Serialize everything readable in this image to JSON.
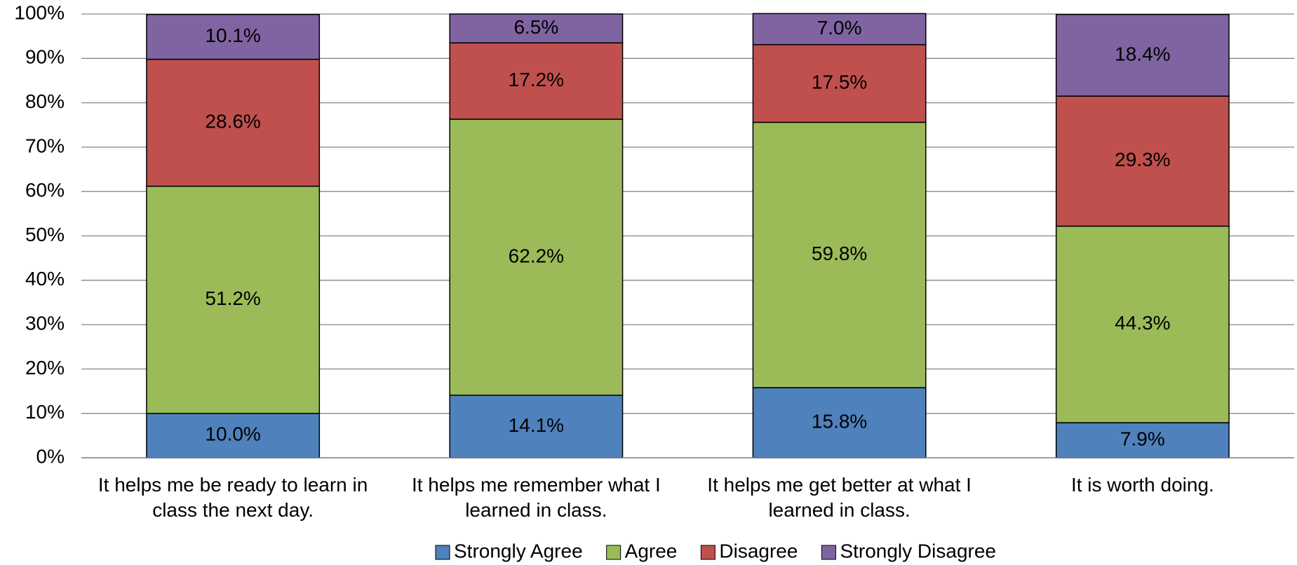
{
  "chart_data": {
    "type": "stacked_bar",
    "categories": [
      "It helps me be ready to learn in class the next day.",
      "It helps me remember what I learned in class.",
      "It helps me get better at what I learned in class.",
      "It is worth doing."
    ],
    "series": [
      {
        "name": "Strongly Agree",
        "color": "#4f81bd",
        "values": [
          10.0,
          14.1,
          15.8,
          7.9
        ],
        "value_labels": [
          "10.0%",
          "14.1%",
          "15.8%",
          "7.9%"
        ]
      },
      {
        "name": "Agree",
        "color": "#9bbb59",
        "values": [
          51.2,
          62.2,
          59.8,
          44.3
        ],
        "value_labels": [
          "51.2%",
          "62.2%",
          "59.8%",
          "44.3%"
        ]
      },
      {
        "name": "Disagree",
        "color": "#c0504d",
        "values": [
          28.6,
          17.2,
          17.5,
          29.3
        ],
        "value_labels": [
          "28.6%",
          "17.2%",
          "17.5%",
          "29.3%"
        ]
      },
      {
        "name": "Strongly Disagree",
        "color": "#8064a2",
        "values": [
          10.1,
          6.5,
          7.0,
          18.4
        ],
        "value_labels": [
          "10.1%",
          "6.5%",
          "7.0%",
          "18.4%"
        ]
      }
    ],
    "ylim": [
      0,
      100
    ],
    "yticks": [
      {
        "value": 0,
        "label": "0%"
      },
      {
        "value": 10,
        "label": "10%"
      },
      {
        "value": 20,
        "label": "20%"
      },
      {
        "value": 30,
        "label": "30%"
      },
      {
        "value": 40,
        "label": "40%"
      },
      {
        "value": 50,
        "label": "50%"
      },
      {
        "value": 60,
        "label": "60%"
      },
      {
        "value": 70,
        "label": "70%"
      },
      {
        "value": 80,
        "label": "80%"
      },
      {
        "value": 90,
        "label": "90%"
      },
      {
        "value": 100,
        "label": "100%"
      }
    ],
    "grid": true,
    "legend": "bottom"
  }
}
